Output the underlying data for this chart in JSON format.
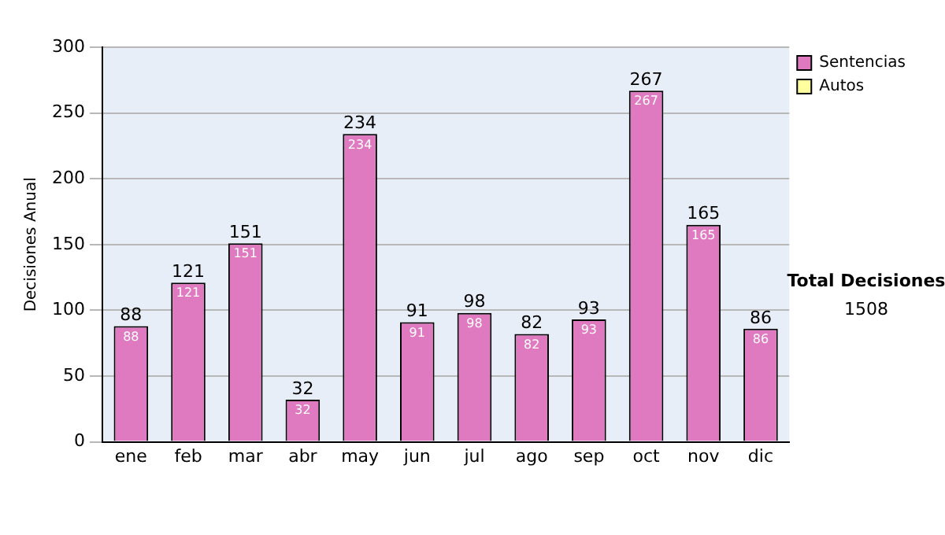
{
  "chart_data": {
    "type": "bar",
    "stacked": true,
    "ylabel": "Decisiones Anual",
    "categories": [
      "ene",
      "feb",
      "mar",
      "abr",
      "may",
      "jun",
      "jul",
      "ago",
      "sep",
      "oct",
      "nov",
      "dic"
    ],
    "series": [
      {
        "name": "Sentencias",
        "color": "#e07ac0",
        "values": [
          88,
          121,
          151,
          32,
          234,
          91,
          98,
          82,
          93,
          267,
          165,
          86
        ],
        "value_labels": [
          "88",
          "121",
          "151",
          "32",
          "234",
          "91",
          "98",
          "82",
          "93",
          "267",
          "165",
          "86"
        ]
      },
      {
        "name": "Autos",
        "color": "#ffffa0",
        "values": [
          0,
          0,
          0,
          0,
          0,
          0,
          0,
          0,
          0,
          0,
          0,
          0
        ]
      }
    ],
    "totals": [
      "88",
      "121",
      "151",
      "32",
      "234",
      "91",
      "98",
      "82",
      "93",
      "267",
      "165",
      "86"
    ],
    "ylim": [
      0,
      300
    ],
    "yticks": [
      0,
      50,
      100,
      150,
      200,
      250,
      300
    ],
    "grid": "y",
    "legend": "right",
    "annotations": [
      "Total Decisiones",
      "1508"
    ]
  }
}
